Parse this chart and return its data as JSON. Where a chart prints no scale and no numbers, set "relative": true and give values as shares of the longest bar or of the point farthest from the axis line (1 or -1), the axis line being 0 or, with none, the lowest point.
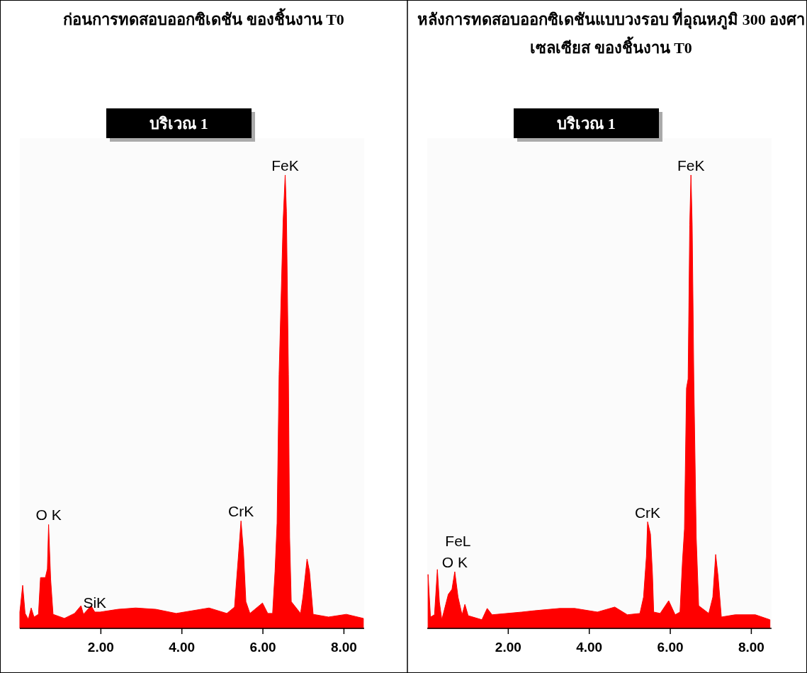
{
  "chart_data": [
    {
      "type": "area",
      "title": "ก่อนการทดสอบออกซิเดชัน ของชิ้นงาน T0",
      "subtitle": "บริเวณ 1",
      "relative": true,
      "color": "#ff0000",
      "x": [
        0.0,
        0.07,
        0.13,
        0.21,
        0.28,
        0.35,
        0.46,
        0.51,
        0.63,
        0.68,
        0.71,
        0.76,
        0.79,
        0.82,
        1.1,
        1.35,
        1.51,
        1.57,
        1.76,
        1.85,
        1.98,
        2.42,
        2.86,
        3.36,
        3.86,
        4.67,
        5.11,
        5.3,
        5.39,
        5.46,
        5.52,
        5.58,
        5.68,
        5.99,
        6.12,
        6.24,
        6.3,
        6.35,
        6.4,
        6.5,
        6.55,
        6.58,
        6.63,
        6.66,
        6.7,
        6.93,
        6.99,
        7.09,
        7.15,
        7.24,
        7.62,
        8.06,
        8.48
      ],
      "values": [
        0.036,
        0.095,
        0.033,
        0.02,
        0.045,
        0.025,
        0.031,
        0.112,
        0.112,
        0.131,
        0.229,
        0.109,
        0.07,
        0.031,
        0.022,
        0.033,
        0.05,
        0.031,
        0.05,
        0.036,
        0.036,
        0.042,
        0.045,
        0.042,
        0.033,
        0.045,
        0.033,
        0.047,
        0.153,
        0.237,
        0.17,
        0.059,
        0.033,
        0.056,
        0.033,
        0.033,
        0.126,
        0.232,
        0.56,
        0.9,
        1.0,
        0.92,
        0.56,
        0.2,
        0.059,
        0.033,
        0.07,
        0.153,
        0.126,
        0.031,
        0.025,
        0.031,
        0.022
      ],
      "xlim": [
        0,
        8.5
      ],
      "xticks": [
        {
          "value": 2,
          "label": "2.00"
        },
        {
          "value": 4,
          "label": "4.00"
        },
        {
          "value": 6,
          "label": "6.00"
        },
        {
          "value": 8,
          "label": "8.00"
        }
      ],
      "annotations": [
        {
          "text": "O K",
          "x": 0.71,
          "y": 0.229
        },
        {
          "text": "SiK",
          "x": 1.85,
          "y": 0.036
        },
        {
          "text": "CrK",
          "x": 5.46,
          "y": 0.237
        },
        {
          "text": "FeK",
          "x": 6.55,
          "y": 1.0
        }
      ]
    },
    {
      "type": "area",
      "title": "หลังการทดสอบออกซิเดชันแบบวงรอบ ที่อุณหภูมิ 300 องศาเซลเซียส ของชิ้นงาน T0",
      "subtitle": "บริเวณ 1",
      "relative": true,
      "color": "#ff0000",
      "x": [
        0.02,
        0.08,
        0.18,
        0.25,
        0.3,
        0.36,
        0.52,
        0.61,
        0.68,
        0.76,
        0.86,
        0.93,
        1.01,
        1.35,
        1.48,
        1.6,
        2.34,
        2.65,
        3.27,
        3.64,
        4.2,
        4.63,
        4.94,
        5.25,
        5.34,
        5.41,
        5.44,
        5.51,
        5.56,
        5.59,
        5.75,
        5.96,
        6.12,
        6.24,
        6.3,
        6.35,
        6.4,
        6.44,
        6.48,
        6.51,
        6.54,
        6.58,
        6.64,
        6.7,
        6.95,
        7.05,
        7.12,
        7.18,
        7.26,
        7.6,
        8.1,
        8.46
      ],
      "values": [
        0.119,
        0.025,
        0.03,
        0.13,
        0.058,
        0.019,
        0.075,
        0.086,
        0.125,
        0.069,
        0.03,
        0.053,
        0.028,
        0.019,
        0.044,
        0.03,
        0.036,
        0.039,
        0.044,
        0.044,
        0.036,
        0.047,
        0.03,
        0.033,
        0.069,
        0.158,
        0.235,
        0.208,
        0.119,
        0.036,
        0.033,
        0.061,
        0.03,
        0.036,
        0.147,
        0.219,
        0.53,
        0.55,
        0.89,
        1.0,
        0.89,
        0.55,
        0.2,
        0.05,
        0.033,
        0.069,
        0.163,
        0.114,
        0.025,
        0.03,
        0.03,
        0.019
      ],
      "xlim": [
        0,
        8.5
      ],
      "xticks": [
        {
          "value": 2,
          "label": "2.00"
        },
        {
          "value": 4,
          "label": "4.00"
        },
        {
          "value": 6,
          "label": "6.00"
        },
        {
          "value": 8,
          "label": "8.00"
        }
      ],
      "annotations": [
        {
          "text": "O K",
          "x": 0.68,
          "y": 0.125
        },
        {
          "text": "FeL",
          "x": 0.76,
          "y": 0.125
        },
        {
          "text": "CrK",
          "x": 5.44,
          "y": 0.235
        },
        {
          "text": "FeK",
          "x": 6.51,
          "y": 1.0
        }
      ]
    }
  ]
}
